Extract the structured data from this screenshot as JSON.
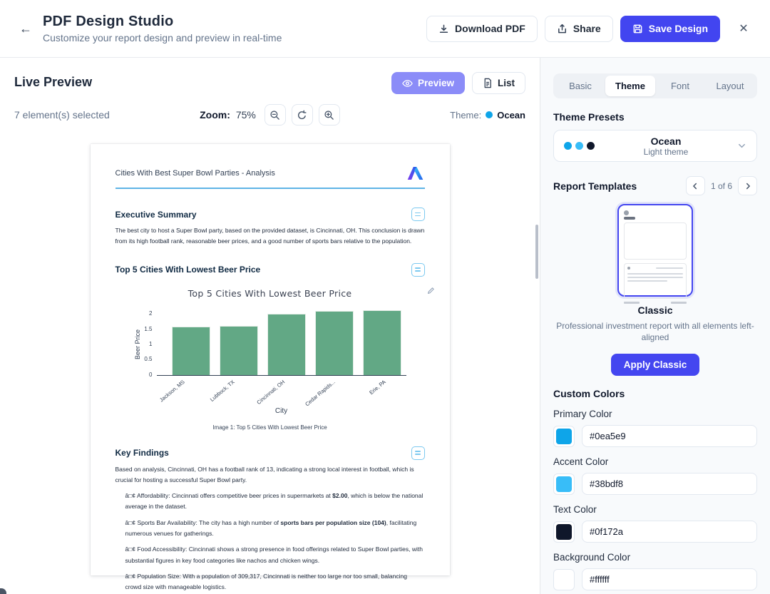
{
  "header": {
    "title": "PDF Design Studio",
    "subtitle": "Customize your report design and preview in real-time",
    "back_icon": "arrow-left",
    "download_label": "Download PDF",
    "share_label": "Share",
    "save_label": "Save Design"
  },
  "toolbar": {
    "panel_title": "Live Preview",
    "selection_status": "7 element(s) selected",
    "zoom_label": "Zoom:",
    "zoom_value": "75%",
    "preview_label": "Preview",
    "list_label": "List",
    "theme_label": "Theme:",
    "theme_name": "Ocean"
  },
  "colors": {
    "primary_button": "#4245f0",
    "preview_toggle": "#8b8cf8",
    "theme_dot": "#0ea5e9",
    "doc_accent_line": "#5fb4e6",
    "chart_bar": "#62a885"
  },
  "sidebar": {
    "tabs": [
      "Basic",
      "Theme",
      "Font",
      "Layout"
    ],
    "active_tab": "Theme",
    "theme_presets": {
      "heading": "Theme Presets",
      "name": "Ocean",
      "subtitle": "Light theme",
      "dots": [
        "#0ea5e9",
        "#38bdf8",
        "#0f172a"
      ]
    },
    "templates": {
      "heading": "Report Templates",
      "pagination": "1 of 6",
      "name": "Classic",
      "description": "Professional investment report with all elements left-aligned",
      "apply_label": "Apply Classic"
    },
    "custom_colors": {
      "heading": "Custom Colors",
      "fields": [
        {
          "label": "Primary Color",
          "value": "#0ea5e9"
        },
        {
          "label": "Accent Color",
          "value": "#38bdf8"
        },
        {
          "label": "Text Color",
          "value": "#0f172a"
        },
        {
          "label": "Background Color",
          "value": "#ffffff"
        }
      ]
    }
  },
  "document": {
    "title": "Cities With Best Super Bowl Parties - Analysis",
    "exec_heading": "Executive Summary",
    "exec_body": "The best city to host a Super Bowl party, based on the provided dataset, is Cincinnati, OH. This conclusion is drawn from its high football rank, reasonable beer prices, and a good number of sports bars relative to the population.",
    "chart_heading": "Top 5 Cities With Lowest Beer Price",
    "findings_heading": "Key Findings",
    "findings_intro": "Based on analysis, Cincinnati, OH has a football rank of 13, indicating a strong local interest in football, which is crucial for hosting a successful Super Bowl party.",
    "bullets": [
      "â□¢ Affordability: Cincinnati offers competitive beer prices in supermarkets at **$2.00**, which is below the national average in the dataset.",
      "â□¢ Sports Bar Availability: The city has a high number of **sports bars per population size (104)**, facilitating numerous venues for gatherings.",
      "â□¢ Food Accessibility: Cincinnati shows a strong presence in food offerings related to Super Bowl parties, with substantial figures in key food categories like nachos and chicken wings.",
      "â□¢ Population Size: With a population of 309,317, Cincinnati is neither too large nor too small, balancing crowd size with manageable logistics."
    ]
  },
  "chart_data": {
    "type": "bar",
    "title": "Top 5 Cities With Lowest Beer Price",
    "categories": [
      "Jackson, MS",
      "Lubbock, TX",
      "Cincinnati, OH",
      "Cedar Rapids...",
      "Erie, PA"
    ],
    "values": [
      1.58,
      1.62,
      2.0,
      2.1,
      2.12
    ],
    "xlabel": "City",
    "ylabel": "Beer Price",
    "yticks": [
      0,
      0.5,
      1,
      1.5,
      2
    ],
    "ylim": [
      0,
      2.25
    ],
    "grid": false,
    "legend": "none",
    "bar_color": "#62a885",
    "caption": "Image 1: Top 5 Cities With Lowest Beer Price"
  }
}
